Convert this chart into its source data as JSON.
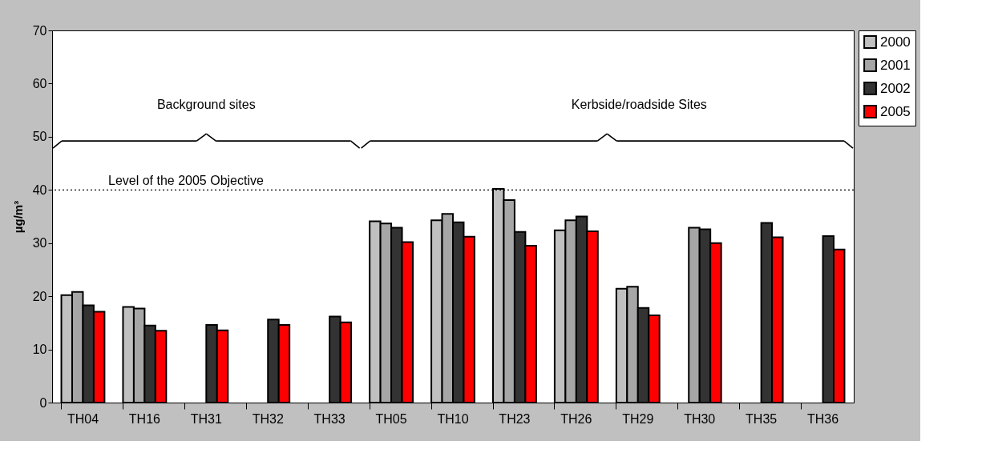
{
  "chart_data": {
    "type": "bar",
    "categories": [
      "TH04",
      "TH16",
      "TH31",
      "TH32",
      "TH33",
      "TH05",
      "TH10",
      "TH23",
      "TH26",
      "TH29",
      "TH30",
      "TH35",
      "TH36"
    ],
    "ylabel": "µg/m³",
    "ylim": [
      0,
      70
    ],
    "yticks": [
      0,
      10,
      20,
      30,
      40,
      50,
      60,
      70
    ],
    "grid": false,
    "legend": "right",
    "series": [
      {
        "name": "2000",
        "color": "#c0c0c0",
        "values": [
          20.2,
          18.0,
          null,
          null,
          null,
          34.1,
          34.3,
          40.2,
          32.4,
          21.4,
          null,
          null,
          null
        ]
      },
      {
        "name": "2001",
        "color": "#a6a6a6",
        "values": [
          20.8,
          17.7,
          null,
          null,
          null,
          33.7,
          35.5,
          38.1,
          34.3,
          21.8,
          32.9,
          null,
          null
        ]
      },
      {
        "name": "2002",
        "color": "#333333",
        "values": [
          18.3,
          14.5,
          14.6,
          15.6,
          16.2,
          32.9,
          33.9,
          32.1,
          35.0,
          17.8,
          32.6,
          33.8,
          31.3
        ]
      },
      {
        "name": "2005",
        "color": "#ff0000",
        "values": [
          17.1,
          13.5,
          13.6,
          14.6,
          15.1,
          30.2,
          31.2,
          29.5,
          32.2,
          16.4,
          30.0,
          31.1,
          28.8
        ]
      }
    ],
    "ref_lines": [
      {
        "axis": "y",
        "value": 40,
        "label": "Level of the 2005 Objective",
        "line_style": "dotted",
        "color": "#000000"
      }
    ],
    "annotations": [
      "Background sites",
      "Kerbside/roadside Sites"
    ]
  }
}
